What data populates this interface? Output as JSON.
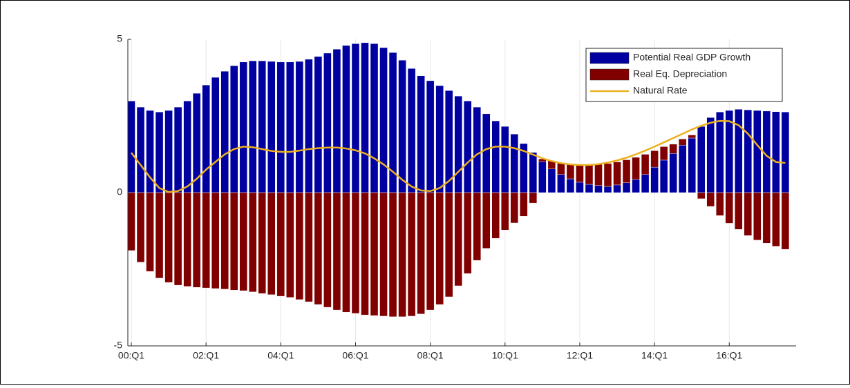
{
  "chart_data": {
    "type": "bar",
    "stacked": true,
    "categories": [
      "00:Q1",
      null,
      null,
      null,
      null,
      null,
      null,
      null,
      "02:Q1",
      null,
      null,
      null,
      null,
      null,
      null,
      null,
      "04:Q1",
      null,
      null,
      null,
      null,
      null,
      null,
      null,
      "06:Q1",
      null,
      null,
      null,
      null,
      null,
      null,
      null,
      "08:Q1",
      null,
      null,
      null,
      null,
      null,
      null,
      null,
      "10:Q1",
      null,
      null,
      null,
      null,
      null,
      null,
      null,
      "12:Q1",
      null,
      null,
      null,
      null,
      null,
      null,
      null,
      "14:Q1",
      null,
      null,
      null,
      null,
      null,
      null,
      null,
      "16:Q1",
      null,
      null,
      null,
      null,
      null,
      null
    ],
    "series": [
      {
        "name": "Potential Real GDP Growth",
        "type": "bar",
        "color": "#0000a0",
        "values": [
          2.99,
          2.79,
          2.68,
          2.63,
          2.68,
          2.79,
          2.99,
          3.24,
          3.51,
          3.76,
          3.96,
          4.14,
          4.26,
          4.3,
          4.3,
          4.28,
          4.26,
          4.26,
          4.28,
          4.35,
          4.44,
          4.55,
          4.68,
          4.8,
          4.86,
          4.89,
          4.86,
          4.73,
          4.57,
          4.32,
          4.05,
          3.81,
          3.65,
          3.49,
          3.33,
          3.15,
          2.99,
          2.79,
          2.57,
          2.34,
          2.16,
          1.91,
          1.6,
          1.31,
          1.01,
          0.77,
          0.59,
          0.45,
          0.34,
          0.27,
          0.23,
          0.2,
          0.25,
          0.32,
          0.43,
          0.59,
          0.83,
          1.06,
          1.28,
          1.55,
          1.78,
          2.16,
          2.45,
          2.63,
          2.68,
          2.72,
          2.7,
          2.68,
          2.66,
          2.64,
          2.63
        ]
      },
      {
        "name": "Real Eq. Depreciation",
        "type": "bar",
        "color": "#800000",
        "values": [
          -1.89,
          -2.27,
          -2.57,
          -2.79,
          -2.93,
          -3.02,
          -3.06,
          -3.09,
          -3.11,
          -3.13,
          -3.15,
          -3.18,
          -3.2,
          -3.24,
          -3.29,
          -3.33,
          -3.38,
          -3.42,
          -3.49,
          -3.56,
          -3.65,
          -3.74,
          -3.83,
          -3.9,
          -3.94,
          -3.99,
          -4.01,
          -4.03,
          -4.05,
          -4.05,
          -4.03,
          -3.96,
          -3.83,
          -3.65,
          -3.4,
          -3.04,
          -2.64,
          -2.21,
          -1.82,
          -1.49,
          -1.22,
          -0.99,
          -0.77,
          -0.34,
          0.09,
          0.27,
          0.38,
          0.48,
          0.56,
          0.63,
          0.69,
          0.75,
          0.75,
          0.75,
          0.72,
          0.66,
          0.54,
          0.44,
          0.3,
          0.2,
          0.1,
          -0.2,
          -0.45,
          -0.75,
          -1.0,
          -1.2,
          -1.4,
          -1.55,
          -1.65,
          -1.75,
          -1.85
        ]
      },
      {
        "name": "Natural Rate",
        "type": "line",
        "color": "#edb120",
        "values": [
          1.3,
          0.9,
          0.5,
          0.15,
          0.02,
          0.05,
          0.2,
          0.45,
          0.75,
          1.0,
          1.25,
          1.42,
          1.5,
          1.48,
          1.42,
          1.36,
          1.33,
          1.33,
          1.37,
          1.42,
          1.45,
          1.47,
          1.47,
          1.44,
          1.38,
          1.28,
          1.12,
          0.92,
          0.68,
          0.42,
          0.2,
          0.07,
          0.05,
          0.15,
          0.38,
          0.68,
          0.98,
          1.25,
          1.42,
          1.5,
          1.5,
          1.45,
          1.36,
          1.24,
          1.12,
          1.03,
          0.96,
          0.92,
          0.9,
          0.9,
          0.93,
          0.98,
          1.05,
          1.14,
          1.25,
          1.37,
          1.5,
          1.64,
          1.78,
          1.92,
          2.06,
          2.18,
          2.28,
          2.34,
          2.33,
          2.2,
          1.92,
          1.55,
          1.2,
          1.0,
          0.97
        ]
      }
    ],
    "ylim": [
      -5,
      5
    ],
    "yticks": [
      -5,
      0,
      5
    ],
    "grid": true,
    "legend": "northeast"
  }
}
